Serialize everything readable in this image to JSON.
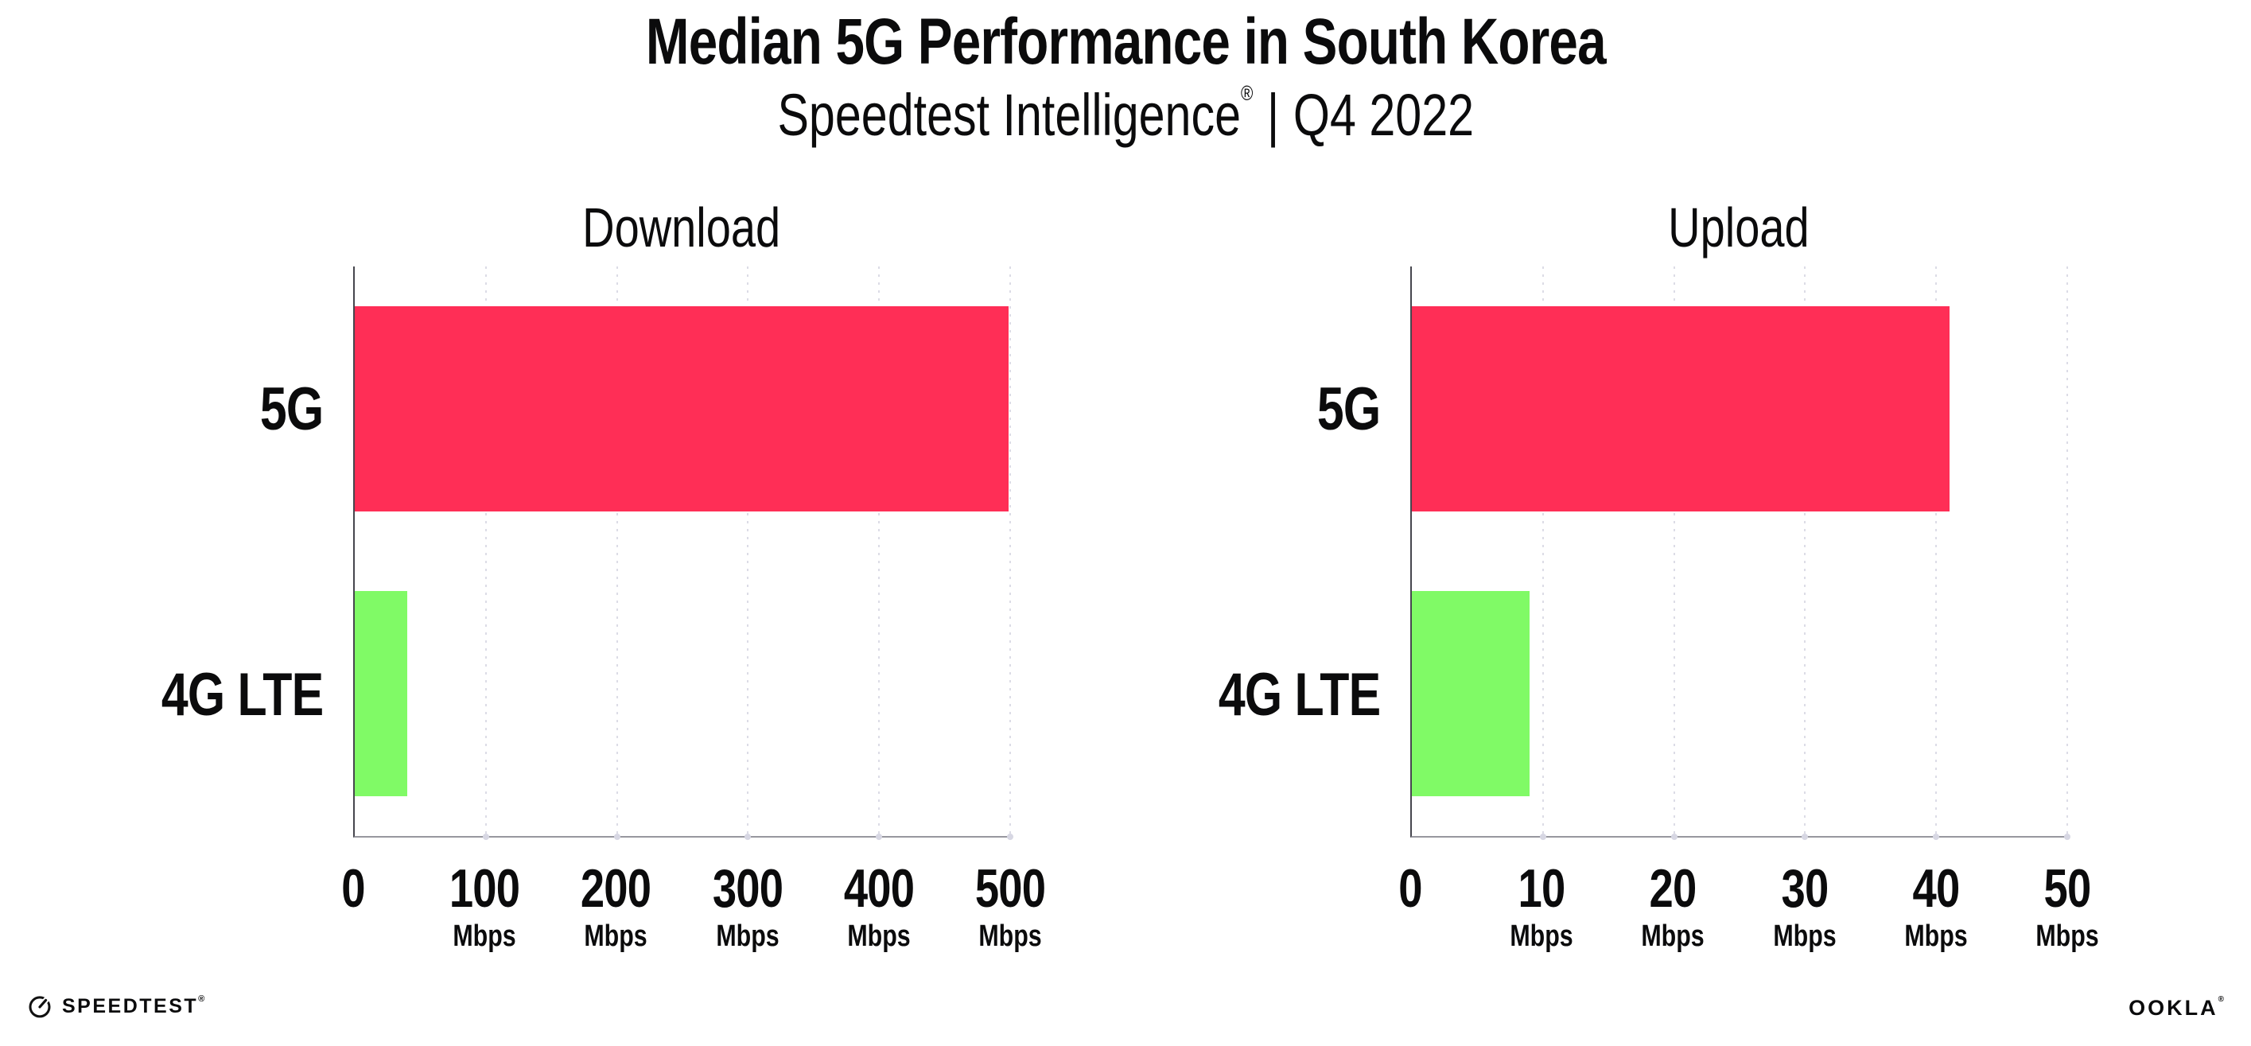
{
  "header": {
    "title": "Median 5G Performance in South Korea",
    "subtitle_brand": "Speedtest Intelligence",
    "subtitle_reg": "®",
    "subtitle_divider": "|",
    "subtitle_period": "Q4 2022"
  },
  "chart_data": [
    {
      "type": "bar",
      "orientation": "horizontal",
      "title": "Download",
      "categories": [
        "5G",
        "4G LTE"
      ],
      "values": [
        499,
        40
      ],
      "unit": "Mbps",
      "xlim": [
        0,
        500
      ],
      "xticks": [
        0,
        100,
        200,
        300,
        400,
        500
      ],
      "tick_unit": "Mbps",
      "bar_colors": [
        "#FF2E56",
        "#80FA66"
      ],
      "grid": "dotted-vertical",
      "legend": "none"
    },
    {
      "type": "bar",
      "orientation": "horizontal",
      "title": "Upload",
      "categories": [
        "5G",
        "4G LTE"
      ],
      "values": [
        41,
        9
      ],
      "unit": "Mbps",
      "xlim": [
        0,
        50
      ],
      "xticks": [
        0,
        10,
        20,
        30,
        40,
        50
      ],
      "tick_unit": "Mbps",
      "bar_colors": [
        "#FF2E56",
        "#80FA66"
      ],
      "grid": "dotted-vertical",
      "legend": "none"
    }
  ],
  "colors": {
    "bar_5g": "#FF2E56",
    "bar_4g_lte": "#80FA66",
    "axis_y": "#46464e",
    "axis_x": "#97979f",
    "gridline": "#dcdce6",
    "text": "#0b0b0c",
    "background": "#ffffff"
  },
  "footer": {
    "speedtest_logo_text": "SPEEDTEST",
    "speedtest_reg": "®",
    "speedtest_icon": "gauge-icon",
    "ookla_logo_text": "OOKLA",
    "ookla_reg": "®"
  }
}
